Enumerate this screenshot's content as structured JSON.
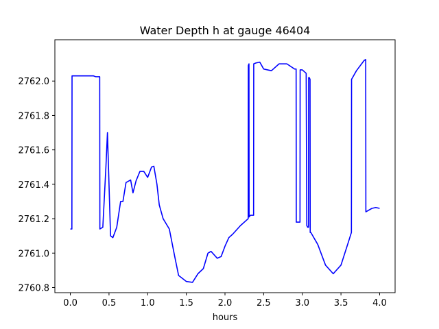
{
  "chart_data": {
    "type": "line",
    "title": "Water Depth h at gauge 46404",
    "xlabel": "hours",
    "ylabel": "",
    "xlim": [
      -0.2,
      4.2
    ],
    "ylim": [
      2760.77,
      2762.24
    ],
    "xticks": [
      0.0,
      0.5,
      1.0,
      1.5,
      2.0,
      2.5,
      3.0,
      3.5,
      4.0
    ],
    "xtick_labels": [
      "0.0",
      "0.5",
      "1.0",
      "1.5",
      "2.0",
      "2.5",
      "3.0",
      "3.5",
      "4.0"
    ],
    "yticks": [
      2760.8,
      2761.0,
      2761.2,
      2761.4,
      2761.6,
      2761.8,
      2762.0
    ],
    "ytick_labels": [
      "2760.8",
      "2761.0",
      "2761.2",
      "2761.4",
      "2761.6",
      "2761.8",
      "2762.0"
    ],
    "grid": false,
    "series": [
      {
        "color": "#0000ff",
        "x": [
          0.0,
          0.02,
          0.022,
          0.1,
          0.2,
          0.3,
          0.33,
          0.38,
          0.382,
          0.42,
          0.46,
          0.48,
          0.5,
          0.52,
          0.55,
          0.6,
          0.65,
          0.68,
          0.72,
          0.78,
          0.81,
          0.85,
          0.9,
          0.95,
          1.0,
          1.05,
          1.08,
          1.12,
          1.15,
          1.2,
          1.28,
          1.35,
          1.4,
          1.5,
          1.58,
          1.65,
          1.72,
          1.78,
          1.82,
          1.9,
          1.95,
          2.0,
          2.05,
          2.1,
          2.2,
          2.3,
          2.302,
          2.31,
          2.312,
          2.33,
          2.37,
          2.372,
          2.4,
          2.45,
          2.5,
          2.6,
          2.7,
          2.8,
          2.9,
          2.92,
          2.922,
          2.97,
          2.972,
          3.0,
          3.05,
          3.058,
          3.07,
          3.08,
          3.082,
          3.09,
          3.1,
          3.102,
          3.11,
          3.2,
          3.3,
          3.4,
          3.5,
          3.6,
          3.635,
          3.637,
          3.7,
          3.8,
          3.82,
          3.822,
          3.9,
          3.95,
          4.0
        ],
        "y": [
          2761.14,
          2761.14,
          2762.03,
          2762.03,
          2762.03,
          2762.03,
          2762.025,
          2762.025,
          2761.14,
          2761.15,
          2761.5,
          2761.7,
          2761.4,
          2761.1,
          2761.09,
          2761.15,
          2761.3,
          2761.3,
          2761.41,
          2761.425,
          2761.35,
          2761.42,
          2761.475,
          2761.475,
          2761.44,
          2761.5,
          2761.505,
          2761.4,
          2761.28,
          2761.2,
          2761.14,
          2760.98,
          2760.87,
          2760.835,
          2760.83,
          2760.88,
          2760.91,
          2761.0,
          2761.01,
          2760.97,
          2760.98,
          2761.04,
          2761.09,
          2761.11,
          2761.16,
          2761.2,
          2762.09,
          2762.1,
          2761.21,
          2761.22,
          2761.22,
          2762.1,
          2762.105,
          2762.11,
          2762.07,
          2762.06,
          2762.1,
          2762.1,
          2762.07,
          2762.07,
          2761.18,
          2761.18,
          2762.065,
          2762.065,
          2762.045,
          2761.16,
          2761.15,
          2761.15,
          2762.02,
          2762.02,
          2762.01,
          2761.12,
          2761.12,
          2761.05,
          2760.93,
          2760.88,
          2760.93,
          2761.07,
          2761.12,
          2762.01,
          2762.06,
          2762.12,
          2762.125,
          2761.24,
          2761.26,
          2761.265,
          2761.26
        ]
      }
    ]
  }
}
